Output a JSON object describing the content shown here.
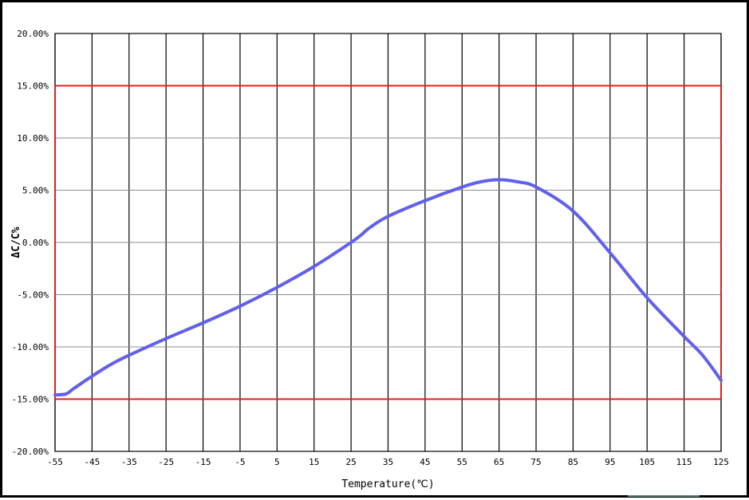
{
  "chart_data": {
    "type": "line",
    "title": "",
    "xlabel": "Temperature(℃)",
    "ylabel": "ΔC/C%",
    "xlim": [
      -55,
      125
    ],
    "ylim": [
      -20,
      20
    ],
    "x_ticks": [
      -55,
      -45,
      -35,
      -25,
      -15,
      -5,
      5,
      15,
      25,
      35,
      45,
      55,
      65,
      75,
      85,
      95,
      105,
      115,
      125
    ],
    "x_tick_labels": [
      "-55",
      "-45",
      "-35",
      "-25",
      "-15",
      "-5",
      "5",
      "15",
      "25",
      "35",
      "45",
      "55",
      "65",
      "75",
      "85",
      "95",
      "105",
      "115",
      "125"
    ],
    "y_ticks": [
      20,
      15,
      10,
      5,
      0,
      -5,
      -10,
      -15,
      -20
    ],
    "y_tick_labels": [
      "20.00%",
      "15.00%",
      "10.00%",
      "5.00%",
      "0.00%",
      "-5.00%",
      "-10.00%",
      "-15.00%",
      "-20.00%"
    ],
    "grid": true,
    "limit_band": {
      "upper": 15,
      "lower": -15,
      "color": "#e02020"
    },
    "series": [
      {
        "color": "#6060f0",
        "x": [
          -55,
          -52,
          -50,
          -45,
          -40,
          -35,
          -25,
          -15,
          -5,
          5,
          15,
          25,
          28,
          30,
          35,
          45,
          55,
          60,
          65,
          70,
          75,
          85,
          95,
          105,
          115,
          120,
          125
        ],
        "y": [
          -14.6,
          -14.5,
          -14.0,
          -12.8,
          -11.7,
          -10.8,
          -9.2,
          -7.7,
          -6.1,
          -4.3,
          -2.3,
          0.0,
          0.8,
          1.4,
          2.5,
          4.0,
          5.3,
          5.8,
          6.0,
          5.8,
          5.3,
          3.0,
          -1.0,
          -5.3,
          -9.0,
          -10.8,
          -13.2
        ]
      }
    ]
  }
}
